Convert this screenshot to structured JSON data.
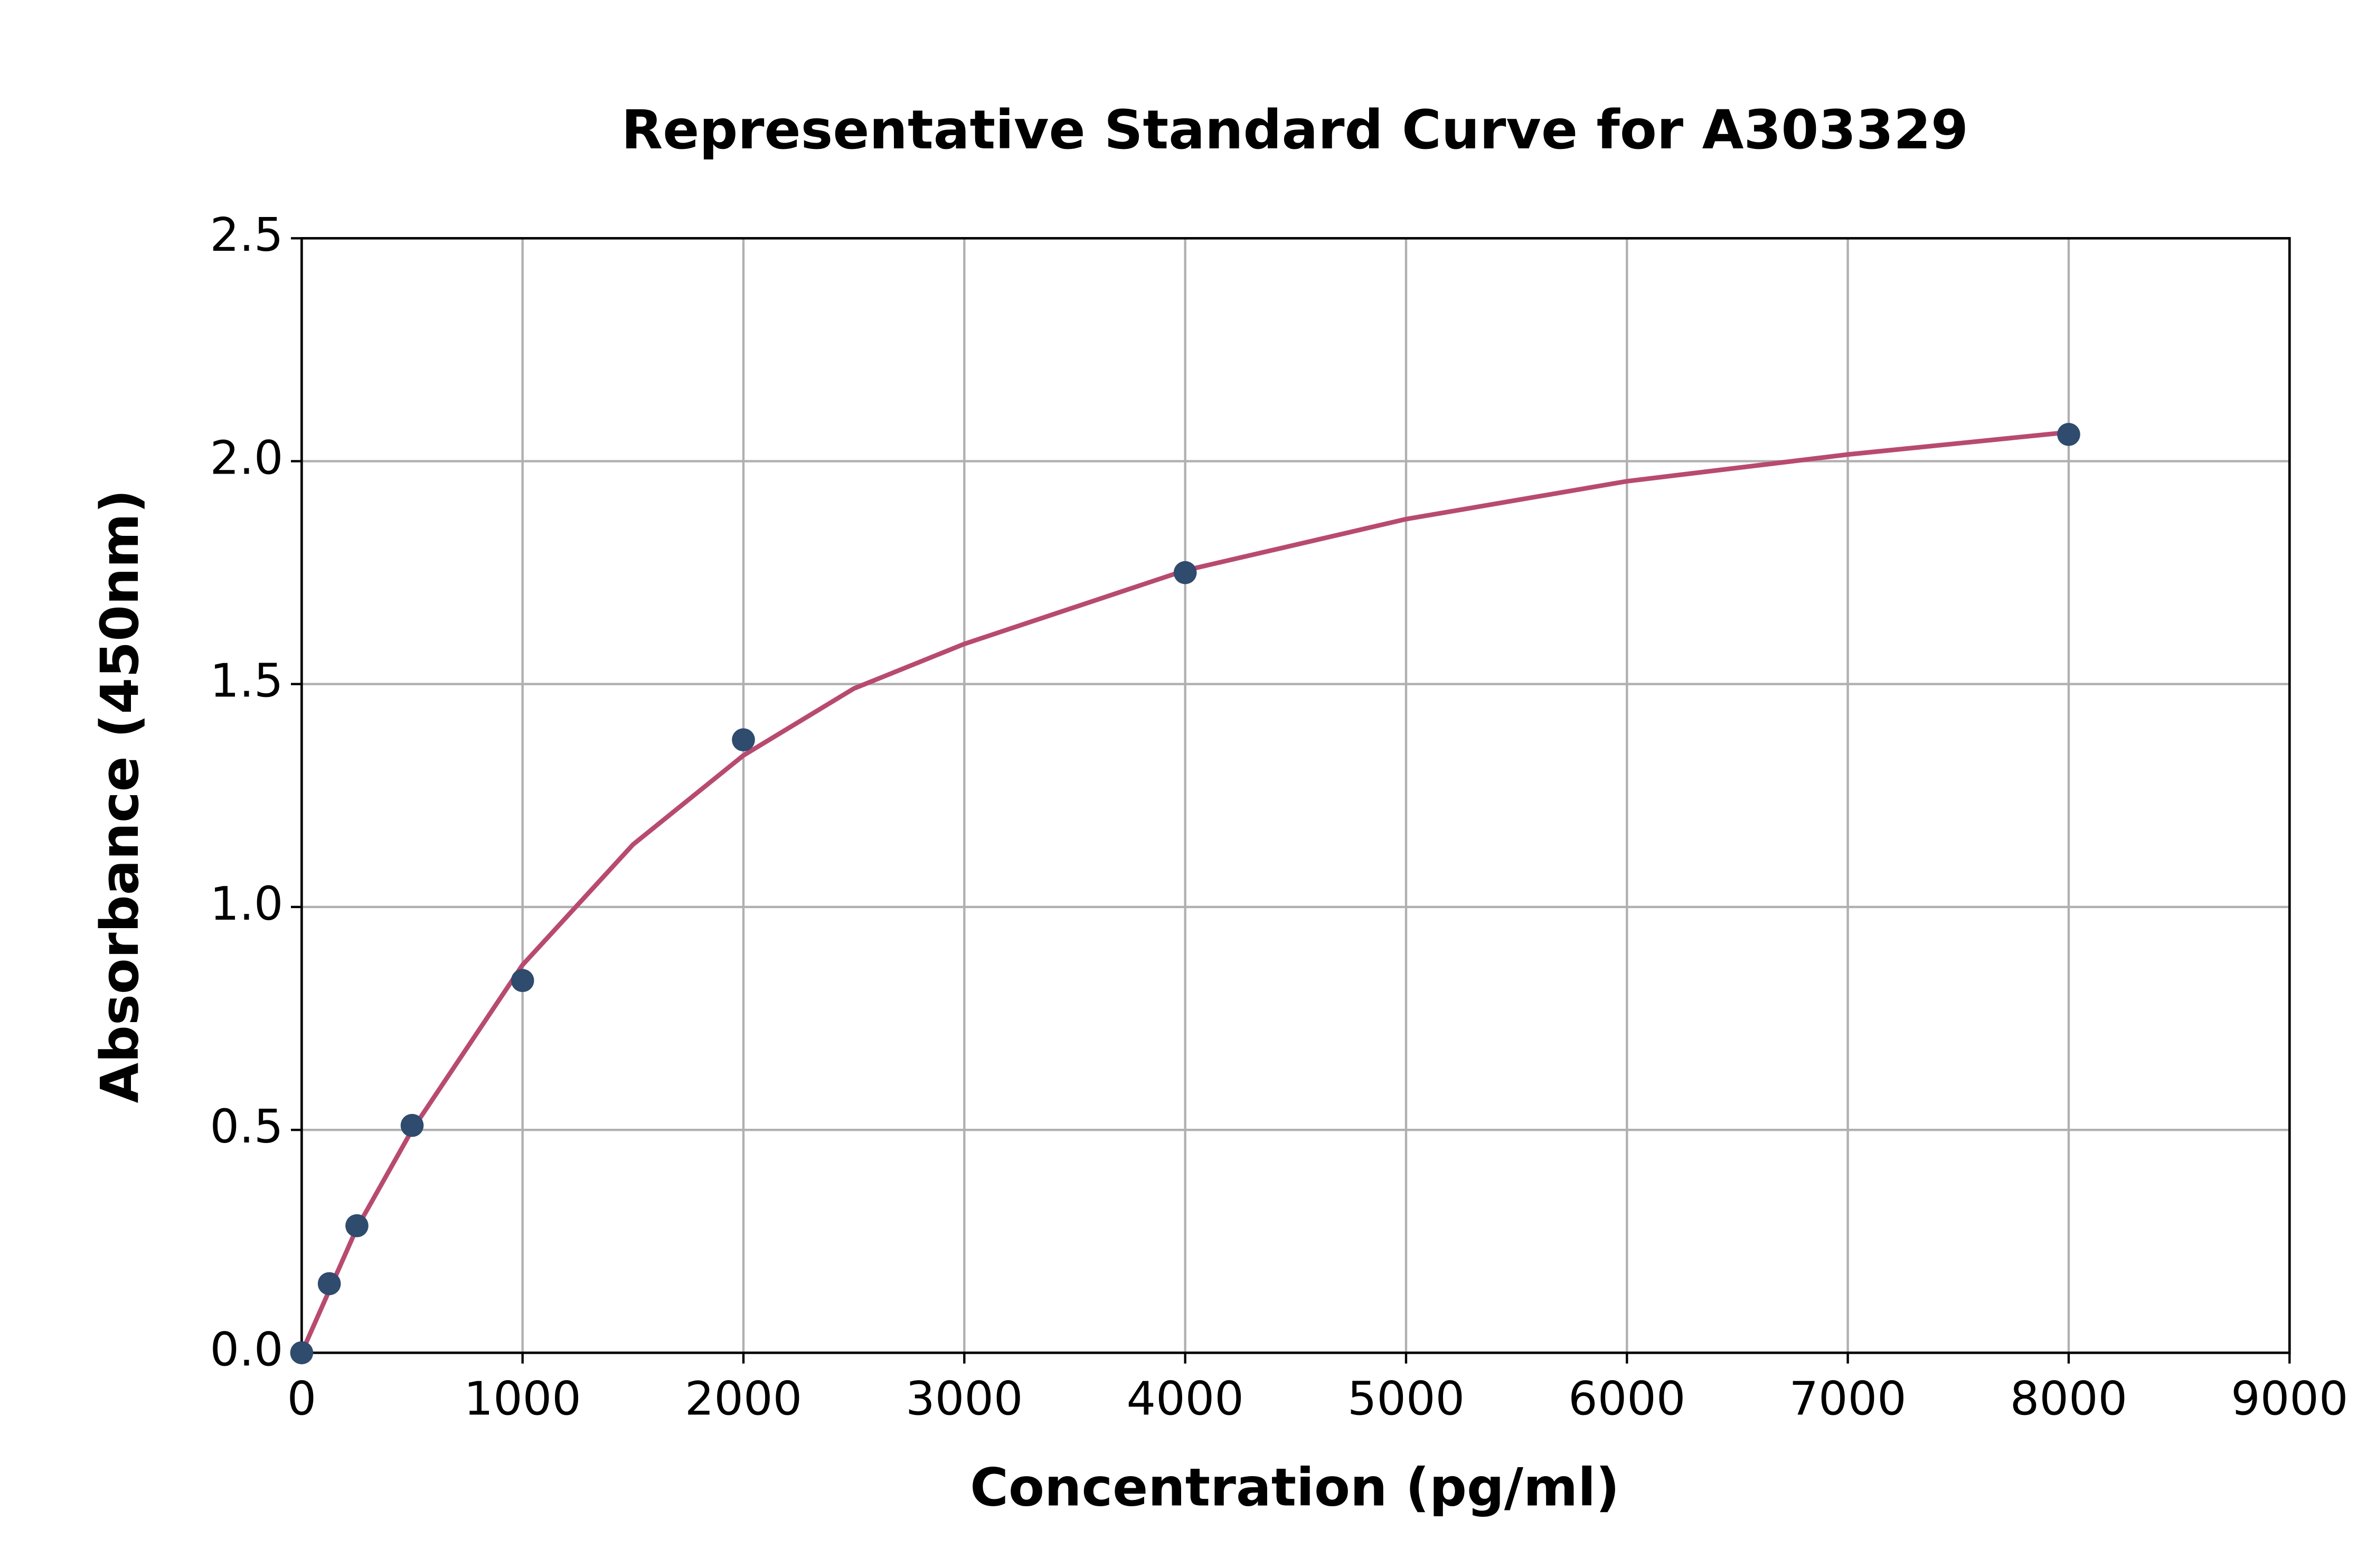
{
  "chart_data": {
    "type": "scatter",
    "title": "Representative Standard Curve for A303329",
    "x_label": "Concentration (pg/ml)",
    "y_label": "Absorbance (450nm)",
    "xlim": [
      0,
      9000
    ],
    "ylim": [
      0,
      2.5
    ],
    "xticks": [
      0,
      1000,
      2000,
      3000,
      4000,
      5000,
      6000,
      7000,
      8000,
      9000
    ],
    "yticks": [
      {
        "value": 0,
        "label": "0.0"
      },
      0.5,
      {
        "value": 1,
        "label": "1.0"
      },
      1.5,
      {
        "value": 2,
        "label": "2.0"
      },
      2.5
    ],
    "grid": true,
    "series": [
      {
        "type": "line",
        "color": "#b84a70",
        "x": [
          0,
          250,
          500,
          1000,
          1500,
          2000,
          2500,
          3000,
          4000,
          5000,
          6000,
          7000,
          8000
        ],
        "values": [
          0.0,
          0.28,
          0.5,
          0.87,
          1.14,
          1.34,
          1.49,
          1.59,
          1.755,
          1.87,
          1.955,
          2.015,
          2.065
        ]
      },
      {
        "type": "scatter",
        "color": "#2f4b6e",
        "x": [
          0,
          125,
          250,
          500,
          1000,
          2000,
          4000,
          8000
        ],
        "values": [
          0.0,
          0.155,
          0.285,
          0.51,
          0.835,
          1.375,
          1.75,
          2.06
        ]
      }
    ]
  }
}
